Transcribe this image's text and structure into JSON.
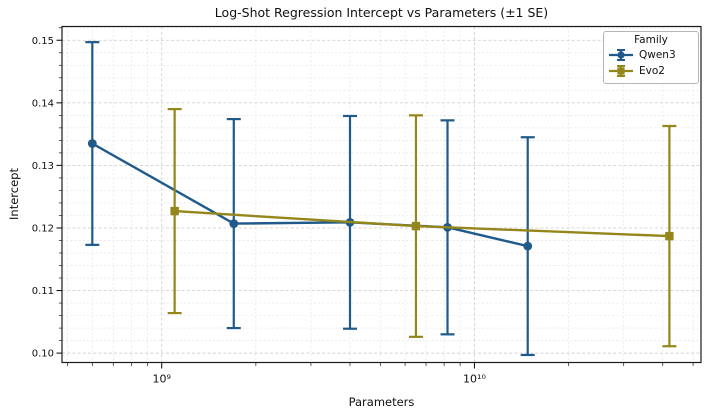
{
  "chart_data": {
    "type": "line",
    "title": "Log-Shot Regression Intercept vs Parameters (±1 SE)",
    "xlabel": "Parameters",
    "ylabel": "Intercept",
    "x_scale": "log",
    "xlim": [
      480000000.0,
      53000000000.0
    ],
    "ylim": [
      0.0985,
      0.1522
    ],
    "x_major_ticks": [
      1000000000.0,
      10000000000.0
    ],
    "x_major_tick_labels": [
      "10⁹",
      "10¹⁰"
    ],
    "y_ticks": [
      0.1,
      0.11,
      0.12,
      0.13,
      0.14,
      0.15
    ],
    "y_minor_step": 0.002,
    "grid": true,
    "legend": {
      "title": "Family",
      "position": "upper right"
    },
    "colors": {
      "qwen3": "#1f5a8b",
      "evo2": "#94861b",
      "grid_major": "#d2d2d2",
      "grid_minor": "#e3e3e3",
      "spine": "#1a1a1a"
    },
    "error_bar_meaning": "±1 SE",
    "series": [
      {
        "name": "Qwen3",
        "marker": "circle",
        "color": "#1f5a8b",
        "x": [
          600000000.0,
          1700000000.0,
          4000000000.0,
          8200000000.0,
          14800000000.0
        ],
        "y": [
          0.1335,
          0.1207,
          0.1209,
          0.1201,
          0.1171
        ],
        "se": [
          0.0162,
          0.0167,
          0.017,
          0.0171,
          0.0174
        ]
      },
      {
        "name": "Evo2",
        "marker": "square",
        "color": "#94861b",
        "x": [
          1100000000.0,
          6500000000.0,
          42000000000.0
        ],
        "y": [
          0.1227,
          0.1203,
          0.1187
        ],
        "se": [
          0.0163,
          0.0177,
          0.0176
        ]
      }
    ]
  }
}
